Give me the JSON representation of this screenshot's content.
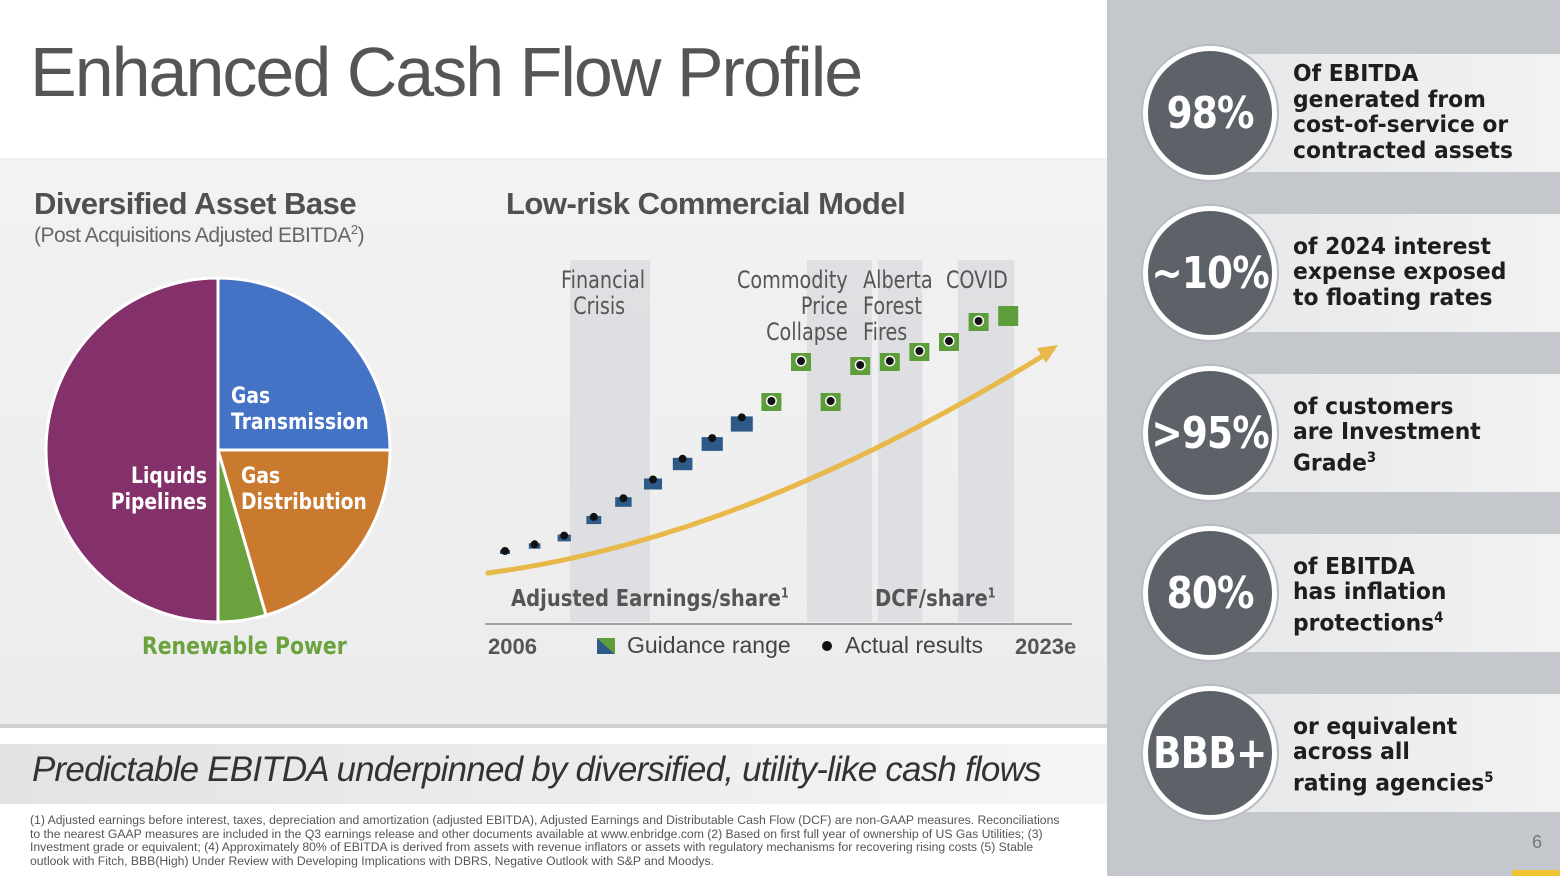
{
  "title": "Enhanced Cash Flow Profile",
  "left_section": {
    "heading": "Diversified Asset Base",
    "subheading_prefix": "(Post Acquisitions Adjusted EBITDA",
    "subheading_sup": "2",
    "subheading_suffix": ")"
  },
  "right_chart_section": {
    "heading": "Low-risk Commercial Model"
  },
  "banner": "Predictable EBITDA underpinned by diversified, utility-like cash flows",
  "footnotes": "(1) Adjusted earnings before interest, taxes, depreciation and amortization (adjusted EBITDA), Adjusted Earnings and Distributable Cash Flow (DCF) are non-GAAP measures. Reconciliations to the nearest GAAP measures are included in the Q3 earnings release and other documents available at www.enbridge.com (2) Based on first full year of ownership of US Gas Utilities; (3) Investment grade or equivalent; (4) Approximately 80% of EBITDA is derived from assets with revenue inflators or assets with regulatory mechanisms for recovering rising costs (5) Stable outlook with Fitch, BBB(High) Under Review with Developing Implications with DBRS, Negative Outlook with S&P and Moodys.",
  "page_number": "6",
  "colors": {
    "liquids": "#84306b",
    "gas_transmission": "#4472c4",
    "gas_distribution": "#c97a2f",
    "renewable": "#6aa33d",
    "guidance_blue": "#2e5a87",
    "guidance_green": "#5e9e3a",
    "arrow": "#e8b94a",
    "stat_circle": "#5d6268"
  },
  "chart_data": [
    {
      "type": "pie",
      "title": "Diversified Asset Base",
      "slices": [
        {
          "label": "Gas Transmission",
          "value": 25,
          "color": "#4472c4"
        },
        {
          "label": "Gas Distribution",
          "value": 20.5,
          "color": "#c97a2f"
        },
        {
          "label": "Renewable Power",
          "value": 4.5,
          "color": "#6aa33d"
        },
        {
          "label": "Liquids Pipelines",
          "value": 50,
          "color": "#84306b"
        }
      ]
    },
    {
      "type": "scatter",
      "title": "Low-risk Commercial Model",
      "x_start_label": "2006",
      "x_end_label": "2023e",
      "series_labels": [
        {
          "text": "Adjusted Earnings/share",
          "sup": "1"
        },
        {
          "text": "DCF/share",
          "sup": "1"
        }
      ],
      "legend": [
        {
          "name": "Guidance range"
        },
        {
          "name": "Actual results"
        }
      ],
      "events": [
        {
          "label": "Financial Crisis",
          "lines": [
            "Financial",
            "Crisis"
          ]
        },
        {
          "label": "Commodity Price Collapse",
          "lines": [
            "Commodity",
            "Price",
            "Collapse"
          ]
        },
        {
          "label": "Alberta Forest Fires",
          "lines": [
            "Alberta",
            "Forest",
            "Fires"
          ]
        },
        {
          "label": "COVID",
          "lines": [
            "COVID"
          ]
        }
      ],
      "points": [
        {
          "i": 0,
          "series": "eps",
          "value": 1.0,
          "actual": true
        },
        {
          "i": 1,
          "series": "eps",
          "value": 1.06,
          "actual": true
        },
        {
          "i": 2,
          "series": "eps",
          "value": 1.14,
          "actual": true
        },
        {
          "i": 3,
          "series": "eps",
          "value": 1.32,
          "actual": true
        },
        {
          "i": 4,
          "series": "eps",
          "value": 1.5,
          "actual": true
        },
        {
          "i": 5,
          "series": "eps",
          "value": 1.68,
          "actual": true
        },
        {
          "i": 6,
          "series": "eps",
          "value": 1.88,
          "actual": true
        },
        {
          "i": 7,
          "series": "eps",
          "value": 2.08,
          "actual": true
        },
        {
          "i": 8,
          "series": "eps",
          "value": 2.28,
          "actual": true
        },
        {
          "i": 9,
          "series": "dcf",
          "value": 2.5,
          "actual": true
        },
        {
          "i": 10,
          "series": "dcf",
          "value": 2.9,
          "actual": true
        },
        {
          "i": 11,
          "series": "dcf",
          "value": 2.5,
          "actual": true
        },
        {
          "i": 12,
          "series": "dcf",
          "value": 2.86,
          "actual": true
        },
        {
          "i": 13,
          "series": "dcf",
          "value": 2.9,
          "actual": true
        },
        {
          "i": 14,
          "series": "dcf",
          "value": 3.0,
          "actual": true
        },
        {
          "i": 15,
          "series": "dcf",
          "value": 3.1,
          "actual": true
        },
        {
          "i": 16,
          "series": "dcf",
          "value": 3.3,
          "actual": true
        },
        {
          "i": 17,
          "series": "dcf",
          "value": 3.36,
          "actual": false
        }
      ]
    }
  ],
  "stats": [
    {
      "value": "98%",
      "text_lines": [
        "Of EBITDA",
        "generated from",
        "cost-of-service or",
        "contracted assets"
      ],
      "sup": ""
    },
    {
      "value": "~10%",
      "text_lines": [
        "of 2024 interest",
        "expense exposed",
        "to floating rates"
      ],
      "sup": ""
    },
    {
      "value": ">95%",
      "text_lines": [
        "of customers",
        "are Investment",
        "Grade"
      ],
      "sup": "3"
    },
    {
      "value": "80%",
      "text_lines": [
        "of EBITDA",
        "has inflation",
        "protections"
      ],
      "sup": "4"
    },
    {
      "value": "BBB+",
      "text_lines": [
        "or equivalent",
        "across all",
        "rating agencies"
      ],
      "sup": "5"
    }
  ]
}
